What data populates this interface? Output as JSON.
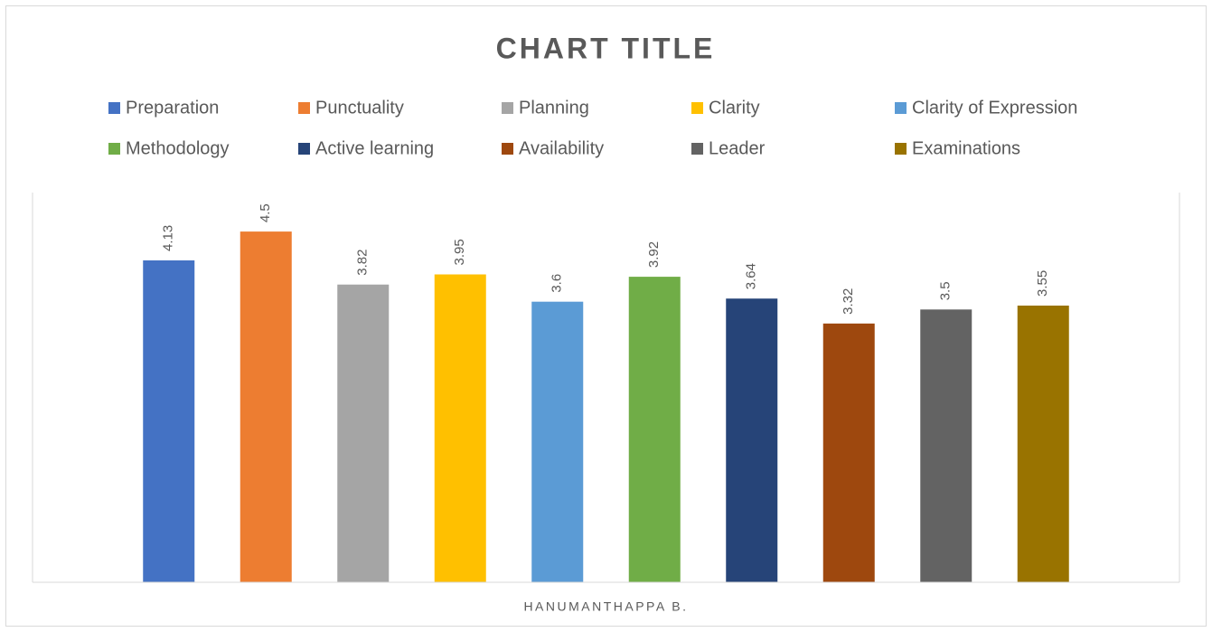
{
  "chart_data": {
    "type": "bar",
    "title": "CHART TITLE",
    "categories": [
      "HANUMANTHAPPA B."
    ],
    "series": [
      {
        "name": "Preparation",
        "color": "#4472c4",
        "values": [
          4.13
        ]
      },
      {
        "name": "Punctuality",
        "color": "#ed7d31",
        "values": [
          4.5
        ]
      },
      {
        "name": "Planning",
        "color": "#a5a5a5",
        "values": [
          3.82
        ]
      },
      {
        "name": "Clarity",
        "color": "#ffc000",
        "values": [
          3.95
        ]
      },
      {
        "name": "Clarity of Expression",
        "color": "#5b9bd5",
        "values": [
          3.6
        ]
      },
      {
        "name": "Methodology",
        "color": "#70ad47",
        "values": [
          3.92
        ]
      },
      {
        "name": "Active learning",
        "color": "#264478",
        "values": [
          3.64
        ]
      },
      {
        "name": "Availability",
        "color": "#9e480e",
        "values": [
          3.32
        ]
      },
      {
        "name": "Leader",
        "color": "#636363",
        "values": [
          3.5
        ]
      },
      {
        "name": "Examinations",
        "color": "#997300",
        "values": [
          3.55
        ]
      }
    ],
    "ylim": [
      0,
      5
    ],
    "legend": "top"
  }
}
